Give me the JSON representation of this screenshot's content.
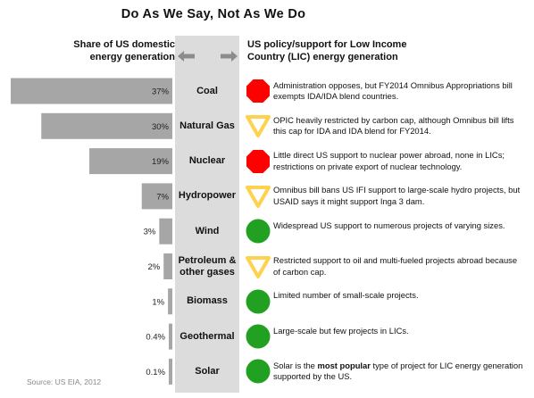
{
  "title": "Do As We Say, Not As We Do",
  "left_header": {
    "line1": "Share of US domestic",
    "line2": "energy generation"
  },
  "right_header": {
    "line1": "US policy/support for Low Income",
    "line2": "Country (LIC) energy generation"
  },
  "source": "Source: US EIA, 2012",
  "colors": {
    "bar": "#a6a6a6",
    "center": "#dcdcdc",
    "red": "#ff0000",
    "yellow": "#ffd24d",
    "green": "#22a022"
  },
  "chart_data": {
    "type": "bar",
    "orientation": "horizontal",
    "xlim": [
      0,
      37
    ],
    "categories": [
      "Coal",
      "Natural Gas",
      "Nuclear",
      "Hydropower",
      "Wind",
      "Petroleum & other gases",
      "Biomass",
      "Geothermal",
      "Solar"
    ],
    "values": [
      37,
      30,
      19,
      7,
      3,
      2,
      1,
      0.4,
      0.1
    ],
    "value_labels": [
      "37%",
      "30%",
      "19%",
      "7%",
      "3%",
      "2%",
      "1%",
      "0.4%",
      "0.1%"
    ]
  },
  "rows": [
    {
      "label1": "Coal",
      "label2": "",
      "status": "red-octagon",
      "desc_a": "Administration opposes, but FY2014 Omnibus Appropriations bill exempts IDA/IDA blend countries.",
      "desc_bold": "",
      "desc_b": ""
    },
    {
      "label1": "Natural Gas",
      "label2": "",
      "status": "yellow-triangle",
      "desc_a": "OPIC heavily restricted by carbon cap, although Omnibus bill lifts this cap for IDA and IDA blend for FY2014.",
      "desc_bold": "",
      "desc_b": ""
    },
    {
      "label1": "Nuclear",
      "label2": "",
      "status": "red-octagon",
      "desc_a": "Little direct US support to nuclear power abroad, none in LICs; restrictions on private export of nuclear technology.",
      "desc_bold": "",
      "desc_b": ""
    },
    {
      "label1": "Hydropower",
      "label2": "",
      "status": "yellow-triangle",
      "desc_a": "Omnibus bill bans US IFI support to large-scale hydro projects, but USAID says it might support Inga 3 dam.",
      "desc_bold": "",
      "desc_b": ""
    },
    {
      "label1": "Wind",
      "label2": "",
      "status": "green-circle",
      "desc_a": "Widespread US support to numerous projects of varying sizes.",
      "desc_bold": "",
      "desc_b": ""
    },
    {
      "label1": "Petroleum &",
      "label2": "other gases",
      "status": "yellow-triangle",
      "desc_a": "Restricted support to oil and multi-fueled projects abroad because of carbon cap.",
      "desc_bold": "",
      "desc_b": ""
    },
    {
      "label1": "Biomass",
      "label2": "",
      "status": "green-circle",
      "desc_a": "Limited number of small-scale projects.",
      "desc_bold": "",
      "desc_b": ""
    },
    {
      "label1": "Geothermal",
      "label2": "",
      "status": "green-circle",
      "desc_a": "Large-scale but few projects in LICs.",
      "desc_bold": "",
      "desc_b": ""
    },
    {
      "label1": "Solar",
      "label2": "",
      "status": "green-circle",
      "desc_a": "Solar is the ",
      "desc_bold": "most popular",
      "desc_b": " type of project for LIC energy generation supported by the US."
    }
  ]
}
